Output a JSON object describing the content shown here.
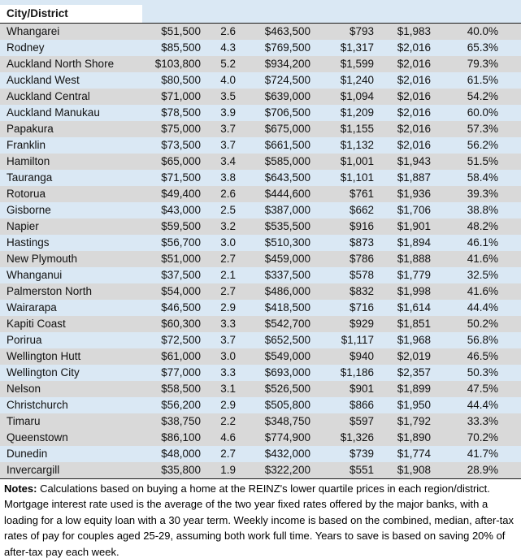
{
  "table": {
    "header": "City/District",
    "rows": [
      {
        "name": "Whangarei",
        "values": [
          "$51,500",
          "2.6",
          "$463,500",
          "$793",
          "$1,983",
          "40.0%"
        ]
      },
      {
        "name": "Rodney",
        "values": [
          "$85,500",
          "4.3",
          "$769,500",
          "$1,317",
          "$2,016",
          "65.3%"
        ]
      },
      {
        "name": "Auckland North Shore",
        "values": [
          "$103,800",
          "5.2",
          "$934,200",
          "$1,599",
          "$2,016",
          "79.3%"
        ]
      },
      {
        "name": "Auckland West",
        "values": [
          "$80,500",
          "4.0",
          "$724,500",
          "$1,240",
          "$2,016",
          "61.5%"
        ]
      },
      {
        "name": "Auckland Central",
        "values": [
          "$71,000",
          "3.5",
          "$639,000",
          "$1,094",
          "$2,016",
          "54.2%"
        ]
      },
      {
        "name": "Auckland Manukau",
        "values": [
          "$78,500",
          "3.9",
          "$706,500",
          "$1,209",
          "$2,016",
          "60.0%"
        ]
      },
      {
        "name": "Papakura",
        "values": [
          "$75,000",
          "3.7",
          "$675,000",
          "$1,155",
          "$2,016",
          "57.3%"
        ]
      },
      {
        "name": "Franklin",
        "values": [
          "$73,500",
          "3.7",
          "$661,500",
          "$1,132",
          "$2,016",
          "56.2%"
        ]
      },
      {
        "name": "Hamilton",
        "values": [
          "$65,000",
          "3.4",
          "$585,000",
          "$1,001",
          "$1,943",
          "51.5%"
        ]
      },
      {
        "name": "Tauranga",
        "values": [
          "$71,500",
          "3.8",
          "$643,500",
          "$1,101",
          "$1,887",
          "58.4%"
        ]
      },
      {
        "name": "Rotorua",
        "values": [
          "$49,400",
          "2.6",
          "$444,600",
          "$761",
          "$1,936",
          "39.3%"
        ]
      },
      {
        "name": "Gisborne",
        "values": [
          "$43,000",
          "2.5",
          "$387,000",
          "$662",
          "$1,706",
          "38.8%"
        ]
      },
      {
        "name": "Napier",
        "values": [
          "$59,500",
          "3.2",
          "$535,500",
          "$916",
          "$1,901",
          "48.2%"
        ]
      },
      {
        "name": "Hastings",
        "values": [
          "$56,700",
          "3.0",
          "$510,300",
          "$873",
          "$1,894",
          "46.1%"
        ]
      },
      {
        "name": "New Plymouth",
        "values": [
          "$51,000",
          "2.7",
          "$459,000",
          "$786",
          "$1,888",
          "41.6%"
        ]
      },
      {
        "name": "Whanganui",
        "values": [
          "$37,500",
          "2.1",
          "$337,500",
          "$578",
          "$1,779",
          "32.5%"
        ]
      },
      {
        "name": "Palmerston North",
        "values": [
          "$54,000",
          "2.7",
          "$486,000",
          "$832",
          "$1,998",
          "41.6%"
        ]
      },
      {
        "name": "Wairarapa",
        "values": [
          "$46,500",
          "2.9",
          "$418,500",
          "$716",
          "$1,614",
          "44.4%"
        ]
      },
      {
        "name": "Kapiti Coast",
        "values": [
          "$60,300",
          "3.3",
          "$542,700",
          "$929",
          "$1,851",
          "50.2%"
        ]
      },
      {
        "name": "Porirua",
        "values": [
          "$72,500",
          "3.7",
          "$652,500",
          "$1,117",
          "$1,968",
          "56.8%"
        ]
      },
      {
        "name": "Wellington Hutt",
        "values": [
          "$61,000",
          "3.0",
          "$549,000",
          "$940",
          "$2,019",
          "46.5%"
        ]
      },
      {
        "name": "Wellington City",
        "values": [
          "$77,000",
          "3.3",
          "$693,000",
          "$1,186",
          "$2,357",
          "50.3%"
        ]
      },
      {
        "name": "Nelson",
        "values": [
          "$58,500",
          "3.1",
          "$526,500",
          "$901",
          "$1,899",
          "47.5%"
        ]
      },
      {
        "name": "Christchurch",
        "values": [
          "$56,200",
          "2.9",
          "$505,800",
          "$866",
          "$1,950",
          "44.4%"
        ]
      },
      {
        "name": "Timaru",
        "values": [
          "$38,750",
          "2.2",
          "$348,750",
          "$597",
          "$1,792",
          "33.3%"
        ]
      },
      {
        "name": "Queenstown",
        "values": [
          "$86,100",
          "4.6",
          "$774,900",
          "$1,326",
          "$1,890",
          "70.2%"
        ]
      },
      {
        "name": "Dunedin",
        "values": [
          "$48,000",
          "2.7",
          "$432,000",
          "$739",
          "$1,774",
          "41.7%"
        ]
      },
      {
        "name": "Invercargill",
        "values": [
          "$35,800",
          "1.9",
          "$322,200",
          "$551",
          "$1,908",
          "28.9%"
        ]
      }
    ]
  },
  "notes": {
    "label": "Notes:",
    "text": "Calculations based on buying a home at the REINZ's lower quartile prices in each region/district. Mortgage interest rate used is the average of the two year fixed rates offered by the major banks, with a loading for a low equity loan with a 30 year term. Weekly income is based on the combined, median, after-tax rates of pay for couples aged 25-29, assuming both work full time. Years to save is based on saving 20% of after-tax pay each week."
  },
  "colors": {
    "band_gray": "#d9d9d9",
    "band_blue": "#dae8f4",
    "header_cell": "#ffffff",
    "rule": "#1a1a1a"
  }
}
